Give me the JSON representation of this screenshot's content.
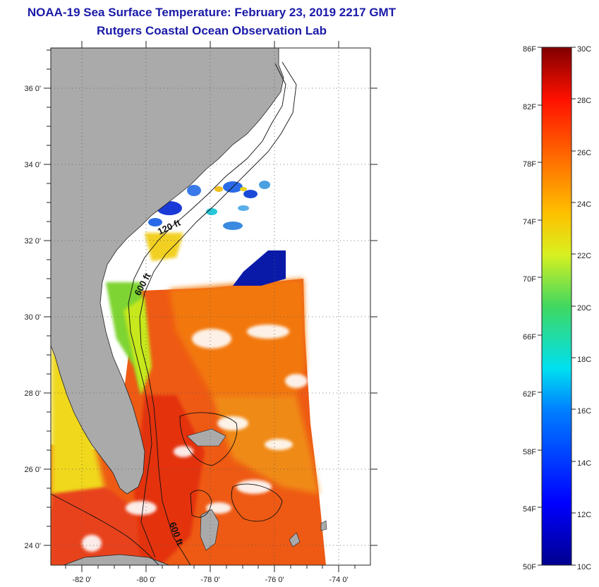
{
  "header": {
    "title": "NOAA-19 Sea Surface Temperature:  February 23, 2019 2217 GMT",
    "subtitle": "Rutgers Coastal Ocean Observation Lab"
  },
  "map": {
    "lat_labels": [
      "36 0'",
      "34 0'",
      "32 0'",
      "30 0'",
      "28 0'",
      "26 0'",
      "24 0'"
    ],
    "lon_labels": [
      "-82 0'",
      "-80 0'",
      "-78 0'",
      "-76 0'",
      "-74 0'"
    ],
    "contour_labels": [
      "120 ft",
      "600 ft",
      "600 ft"
    ],
    "colors": {
      "land": "#aaaaaa",
      "cloud": "#ffffff",
      "warm": "#e83a12",
      "orange": "#f2780e"
    }
  },
  "colorbar": {
    "fahrenheit_labels": [
      "86F",
      "82F",
      "78F",
      "74F",
      "70F",
      "66F",
      "62F",
      "58F",
      "54F",
      "50F"
    ],
    "celsius_labels": [
      "30C",
      "28C",
      "26C",
      "24C",
      "22C",
      "20C",
      "18C",
      "16C",
      "14C",
      "12C",
      "10C"
    ]
  }
}
